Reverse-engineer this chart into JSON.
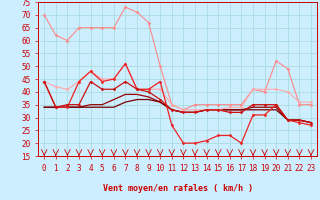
{
  "background_color": "#cceeff",
  "grid_color": "#aadddd",
  "x_labels": [
    0,
    1,
    2,
    3,
    4,
    5,
    6,
    7,
    8,
    9,
    10,
    11,
    12,
    13,
    14,
    15,
    16,
    17,
    18,
    19,
    20,
    21,
    22,
    23
  ],
  "xlabel": "Vent moyen/en rafales ( km/h )",
  "ylim": [
    15,
    75
  ],
  "yticks": [
    15,
    20,
    25,
    30,
    35,
    40,
    45,
    50,
    55,
    60,
    65,
    70,
    75
  ],
  "series": [
    {
      "color": "#ff8888",
      "linewidth": 0.8,
      "marker": "D",
      "markersize": 1.5,
      "values": [
        70,
        62,
        60,
        65,
        65,
        65,
        65,
        73,
        71,
        67,
        50,
        35,
        33,
        35,
        35,
        35,
        35,
        35,
        41,
        40,
        52,
        49,
        35,
        35
      ]
    },
    {
      "color": "#ffaaaa",
      "linewidth": 0.8,
      "marker": "D",
      "markersize": 1.5,
      "values": [
        44,
        42,
        41,
        44,
        48,
        45,
        45,
        51,
        41,
        41,
        41,
        35,
        33,
        33,
        33,
        33,
        34,
        34,
        41,
        41,
        41,
        40,
        36,
        36
      ]
    },
    {
      "color": "#ee2222",
      "linewidth": 0.9,
      "marker": "D",
      "markersize": 1.5,
      "values": [
        44,
        34,
        34,
        44,
        48,
        44,
        45,
        51,
        41,
        41,
        44,
        27,
        20,
        20,
        21,
        23,
        23,
        20,
        31,
        31,
        35,
        29,
        28,
        27
      ]
    },
    {
      "color": "#cc1111",
      "linewidth": 0.9,
      "marker": "D",
      "markersize": 1.5,
      "values": [
        44,
        34,
        35,
        35,
        44,
        41,
        41,
        44,
        41,
        40,
        37,
        33,
        32,
        32,
        33,
        33,
        32,
        32,
        35,
        35,
        35,
        29,
        29,
        28
      ]
    },
    {
      "color": "#990000",
      "linewidth": 0.9,
      "marker": null,
      "markersize": 0,
      "values": [
        34,
        34,
        34,
        34,
        35,
        35,
        37,
        39,
        39,
        38,
        36,
        33,
        32,
        32,
        33,
        33,
        33,
        33,
        34,
        34,
        34,
        29,
        29,
        28
      ]
    },
    {
      "color": "#770000",
      "linewidth": 0.9,
      "marker": null,
      "markersize": 0,
      "values": [
        34,
        34,
        34,
        34,
        34,
        34,
        34,
        36,
        37,
        37,
        36,
        33,
        32,
        32,
        33,
        33,
        33,
        33,
        33,
        33,
        33,
        29,
        29,
        28
      ]
    }
  ],
  "arrow_color": "#cc0000",
  "axis_fontsize": 6,
  "tick_fontsize": 5.5
}
